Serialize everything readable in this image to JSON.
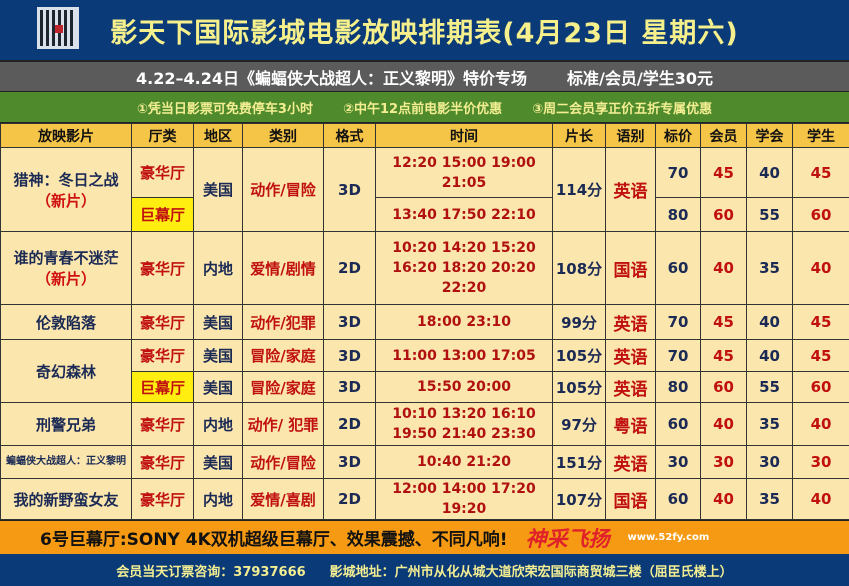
{
  "title": "影天下国际影城电影放映排期表(4月23日 星期六)",
  "promo": {
    "left": "4.22–4.24日《蝙蝠侠大战超人：正义黎明》特价专场",
    "right": "标准/会员/学生30元"
  },
  "notes": [
    "①凭当日影票可免费停车3小时",
    "②中午12点前电影半价优惠",
    "③周二会员享正价五折专属优惠"
  ],
  "headers": [
    "放映影片",
    "厅类",
    "地区",
    "类别",
    "格式",
    "时间",
    "片长",
    "语别",
    "标价",
    "会员",
    "学会",
    "学生"
  ],
  "rows": [
    {
      "film": "猎神：冬日之战",
      "tag": "（新片）",
      "hall": "豪华厅",
      "region": "美国",
      "genre": "动作/冒险",
      "format": "3D",
      "times": [
        "12:20 15:00 19:00",
        "21:05"
      ],
      "length": "114分",
      "lang": "英语",
      "prices": [
        "70",
        "45",
        "40",
        "45"
      ]
    },
    {
      "hall": "巨幕厅",
      "times": [
        "13:40 17:50 22:10"
      ],
      "prices": [
        "80",
        "60",
        "55",
        "60"
      ]
    },
    {
      "film": "谁的青春不迷茫",
      "tag": "（新片）",
      "hall": "豪华厅",
      "region": "内地",
      "genre": "爱情/剧情",
      "format": "2D",
      "times": [
        "10:20 14:20 15:20",
        "16:20 18:20 20:20",
        "22:20"
      ],
      "length": "108分",
      "lang": "国语",
      "prices": [
        "60",
        "40",
        "35",
        "40"
      ]
    },
    {
      "film": "伦敦陷落",
      "hall": "豪华厅",
      "region": "美国",
      "genre": "动作/犯罪",
      "format": "3D",
      "times": [
        "18:00  23:10"
      ],
      "length": "99分",
      "lang": "英语",
      "prices": [
        "70",
        "45",
        "40",
        "45"
      ]
    },
    {
      "film": "奇幻森林",
      "hall": "豪华厅",
      "region": "美国",
      "genre": "冒险/家庭",
      "format": "3D",
      "times": [
        "11:00 13:00 17:05"
      ],
      "length": "105分",
      "lang": "英语",
      "prices": [
        "70",
        "45",
        "40",
        "45"
      ]
    },
    {
      "hall": "巨幕厅",
      "region": "美国",
      "genre": "冒险/家庭",
      "format": "3D",
      "times": [
        "15:50 20:00"
      ],
      "length": "105分",
      "lang": "英语",
      "prices": [
        "80",
        "60",
        "55",
        "60"
      ]
    },
    {
      "film": "刑警兄弟",
      "hall": "豪华厅",
      "region": "内地",
      "genre": "动作/ 犯罪",
      "format": "2D",
      "times": [
        "10:10 13:20  16:10",
        "19:50 21:40 23:30"
      ],
      "length": "97分",
      "lang": "粤语",
      "prices": [
        "60",
        "40",
        "35",
        "40"
      ]
    },
    {
      "film": "蝙蝠侠大战超人：正义黎明",
      "hall": "豪华厅",
      "region": "美国",
      "genre": "动作/冒险",
      "format": "3D",
      "times": [
        "10:40  21:20"
      ],
      "length": "151分",
      "lang": "英语",
      "prices": [
        "30",
        "30",
        "30",
        "30"
      ]
    },
    {
      "film": "我的新野蛮女友",
      "hall": "豪华厅",
      "region": "内地",
      "genre": "爱情/喜剧",
      "format": "2D",
      "times": [
        "12:00 14:00 17:20 19:20"
      ],
      "length": "107分",
      "lang": "国语",
      "prices": [
        "60",
        "40",
        "35",
        "40"
      ]
    }
  ],
  "banner": "6号巨幕厅:SONY 4K双机超级巨幕厅、效果震撼、不同凡响!",
  "watermark": {
    "logo": "神采飞扬",
    "url": "www.52fy.com"
  },
  "footer": {
    "phone": "会员当天订票咨询：37937666",
    "address": "影城地址：广州市从化从城大道欣荣宏国际商贸城三楼（屈臣氏楼上）"
  }
}
